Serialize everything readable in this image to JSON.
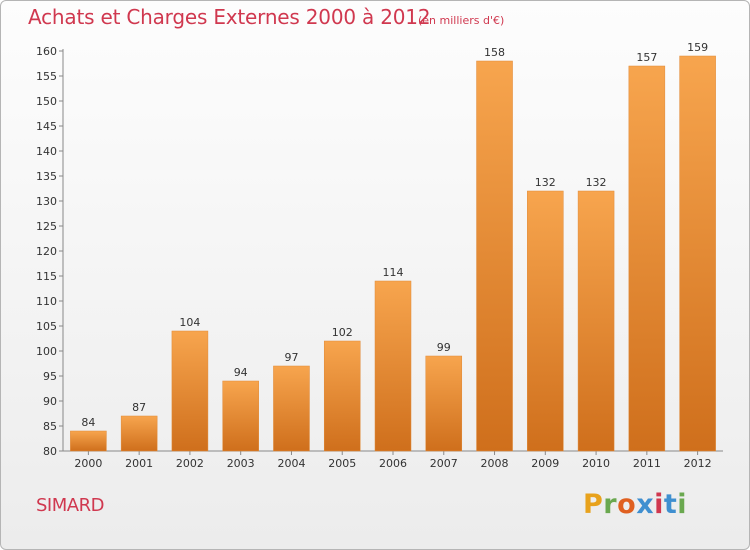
{
  "header": {
    "title": "Achats et Charges Externes 2000 à 2012",
    "subtitle": "(en milliers d'€)"
  },
  "footer": {
    "commune": "SIMARD",
    "logo_text": "Proxiti",
    "logo_colors": [
      "#e8a21c",
      "#6aa84f",
      "#e06020",
      "#3f8fd0",
      "#d0384f",
      "#3f8fd0",
      "#6aa84f"
    ]
  },
  "colors": {
    "bar_light": "#f7a54e",
    "bar_dark": "#cf6f1c",
    "title": "#d0384f"
  },
  "chart_data": {
    "type": "bar",
    "title": "Achats et Charges Externes 2000 à 2012",
    "subtitle": "(en milliers d'€)",
    "categories": [
      "2000",
      "2001",
      "2002",
      "2003",
      "2004",
      "2005",
      "2006",
      "2007",
      "2008",
      "2009",
      "2010",
      "2011",
      "2012"
    ],
    "values": [
      84,
      87,
      104,
      94,
      97,
      102,
      114,
      99,
      158,
      132,
      132,
      157,
      159
    ],
    "xlabel": "",
    "ylabel": "",
    "ylim": [
      80,
      160
    ],
    "yticks": [
      80,
      85,
      90,
      95,
      100,
      105,
      110,
      115,
      120,
      125,
      130,
      135,
      140,
      145,
      150,
      155,
      160
    ],
    "grid": false,
    "data_labels": true
  }
}
